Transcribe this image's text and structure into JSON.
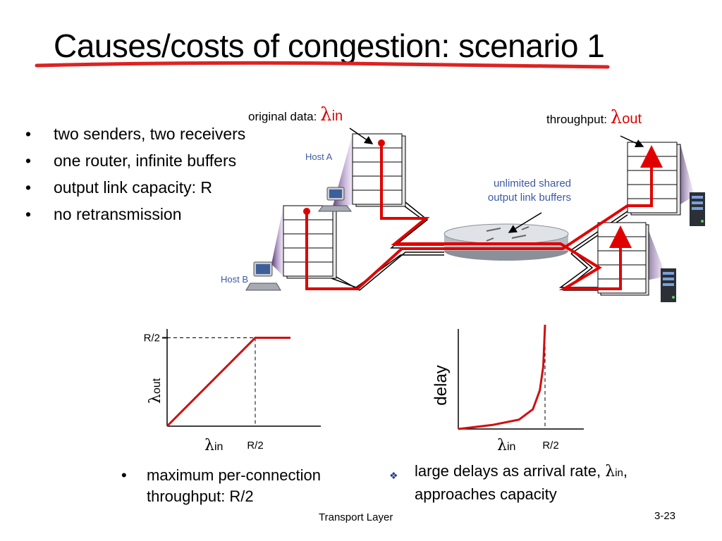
{
  "title": "Causes/costs of congestion: scenario 1",
  "bullets": [
    "two senders, two receivers",
    "one router, infinite buffers",
    "output link capacity: R",
    "no retransmission"
  ],
  "labels": {
    "original_data": "original data:",
    "lambda": "λ",
    "in": "in",
    "out": "out",
    "throughput": "throughput:",
    "host_a": "Host A",
    "host_b": "Host B",
    "buffers": "unlimited shared output link buffers"
  },
  "chart_data": [
    {
      "type": "line",
      "x": [
        0,
        0.5,
        0.7
      ],
      "y": [
        0,
        0.5,
        0.5
      ],
      "xtick_labels": [
        "R/2"
      ],
      "ytick_labels": [
        "R/2"
      ],
      "xlabel": "λin",
      "ylabel": "λout",
      "title": ""
    },
    {
      "type": "line",
      "x": [
        0,
        0.2,
        0.35,
        0.43,
        0.47,
        0.49,
        0.5
      ],
      "y": [
        0.0,
        0.04,
        0.09,
        0.19,
        0.37,
        0.6,
        1.0
      ],
      "xtick_labels": [
        "R/2"
      ],
      "xlabel": "λin",
      "ylabel": "delay",
      "title": ""
    }
  ],
  "bottom_left": "maximum per-connection throughput: R/2",
  "bottom_right_a": "large delays as arrival rate, ",
  "bottom_right_b": "approaches capacity",
  "footer": "Transport Layer",
  "page": "3-23",
  "colors": {
    "accent": "#e00000",
    "label_blue": "#3b5ba5",
    "host_shadow": "#6a3d8f"
  }
}
